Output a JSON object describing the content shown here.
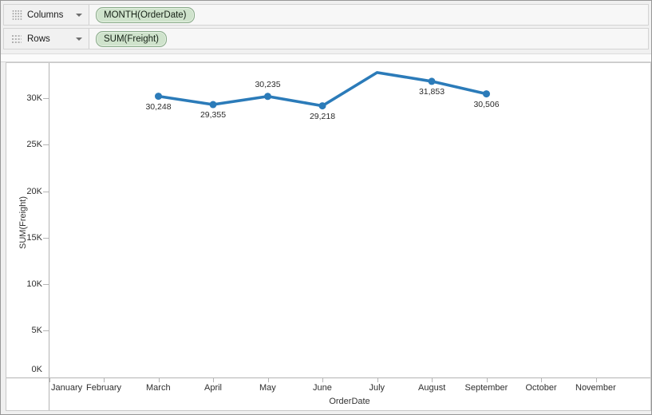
{
  "shelves": {
    "columns": {
      "label": "Columns",
      "pill": "MONTH(OrderDate)"
    },
    "rows": {
      "label": "Rows",
      "pill": "SUM(Freight)"
    }
  },
  "colors": {
    "line": "#2b7bb9",
    "pill_bg": "#cfe3cc",
    "pill_border": "#86a886",
    "axis": "#b4b4b4",
    "text": "#2e2e2e"
  },
  "chart_data": {
    "type": "line",
    "title": "",
    "xlabel": "OrderDate",
    "ylabel": "SUM(Freight)",
    "x_categories": [
      "January",
      "February",
      "March",
      "April",
      "May",
      "June",
      "July",
      "August",
      "September",
      "October",
      "November"
    ],
    "y_axis": {
      "min": 0,
      "max": 34000,
      "tick_step": 5000,
      "tick_labels": [
        "0K",
        "5K",
        "10K",
        "15K",
        "20K",
        "25K",
        "30K"
      ]
    },
    "grid": false,
    "legend": false,
    "series": [
      {
        "name": "SUM(Freight)",
        "points": [
          {
            "x": "March",
            "value": 30248,
            "label": "30,248",
            "label_position": "below",
            "marker": true
          },
          {
            "x": "April",
            "value": 29355,
            "label": "29,355",
            "label_position": "below",
            "marker": true
          },
          {
            "x": "May",
            "value": 30235,
            "label": "30,235",
            "label_position": "above",
            "marker": true
          },
          {
            "x": "June",
            "value": 29218,
            "label": "29,218",
            "label_position": "below",
            "marker": true
          },
          {
            "x": "July",
            "value": 32800,
            "label": "",
            "label_position": "none",
            "marker": false,
            "estimated": true
          },
          {
            "x": "August",
            "value": 31853,
            "label": "31,853",
            "label_position": "below",
            "marker": true
          },
          {
            "x": "September",
            "value": 30506,
            "label": "30,506",
            "label_position": "below",
            "marker": true
          }
        ]
      }
    ]
  }
}
